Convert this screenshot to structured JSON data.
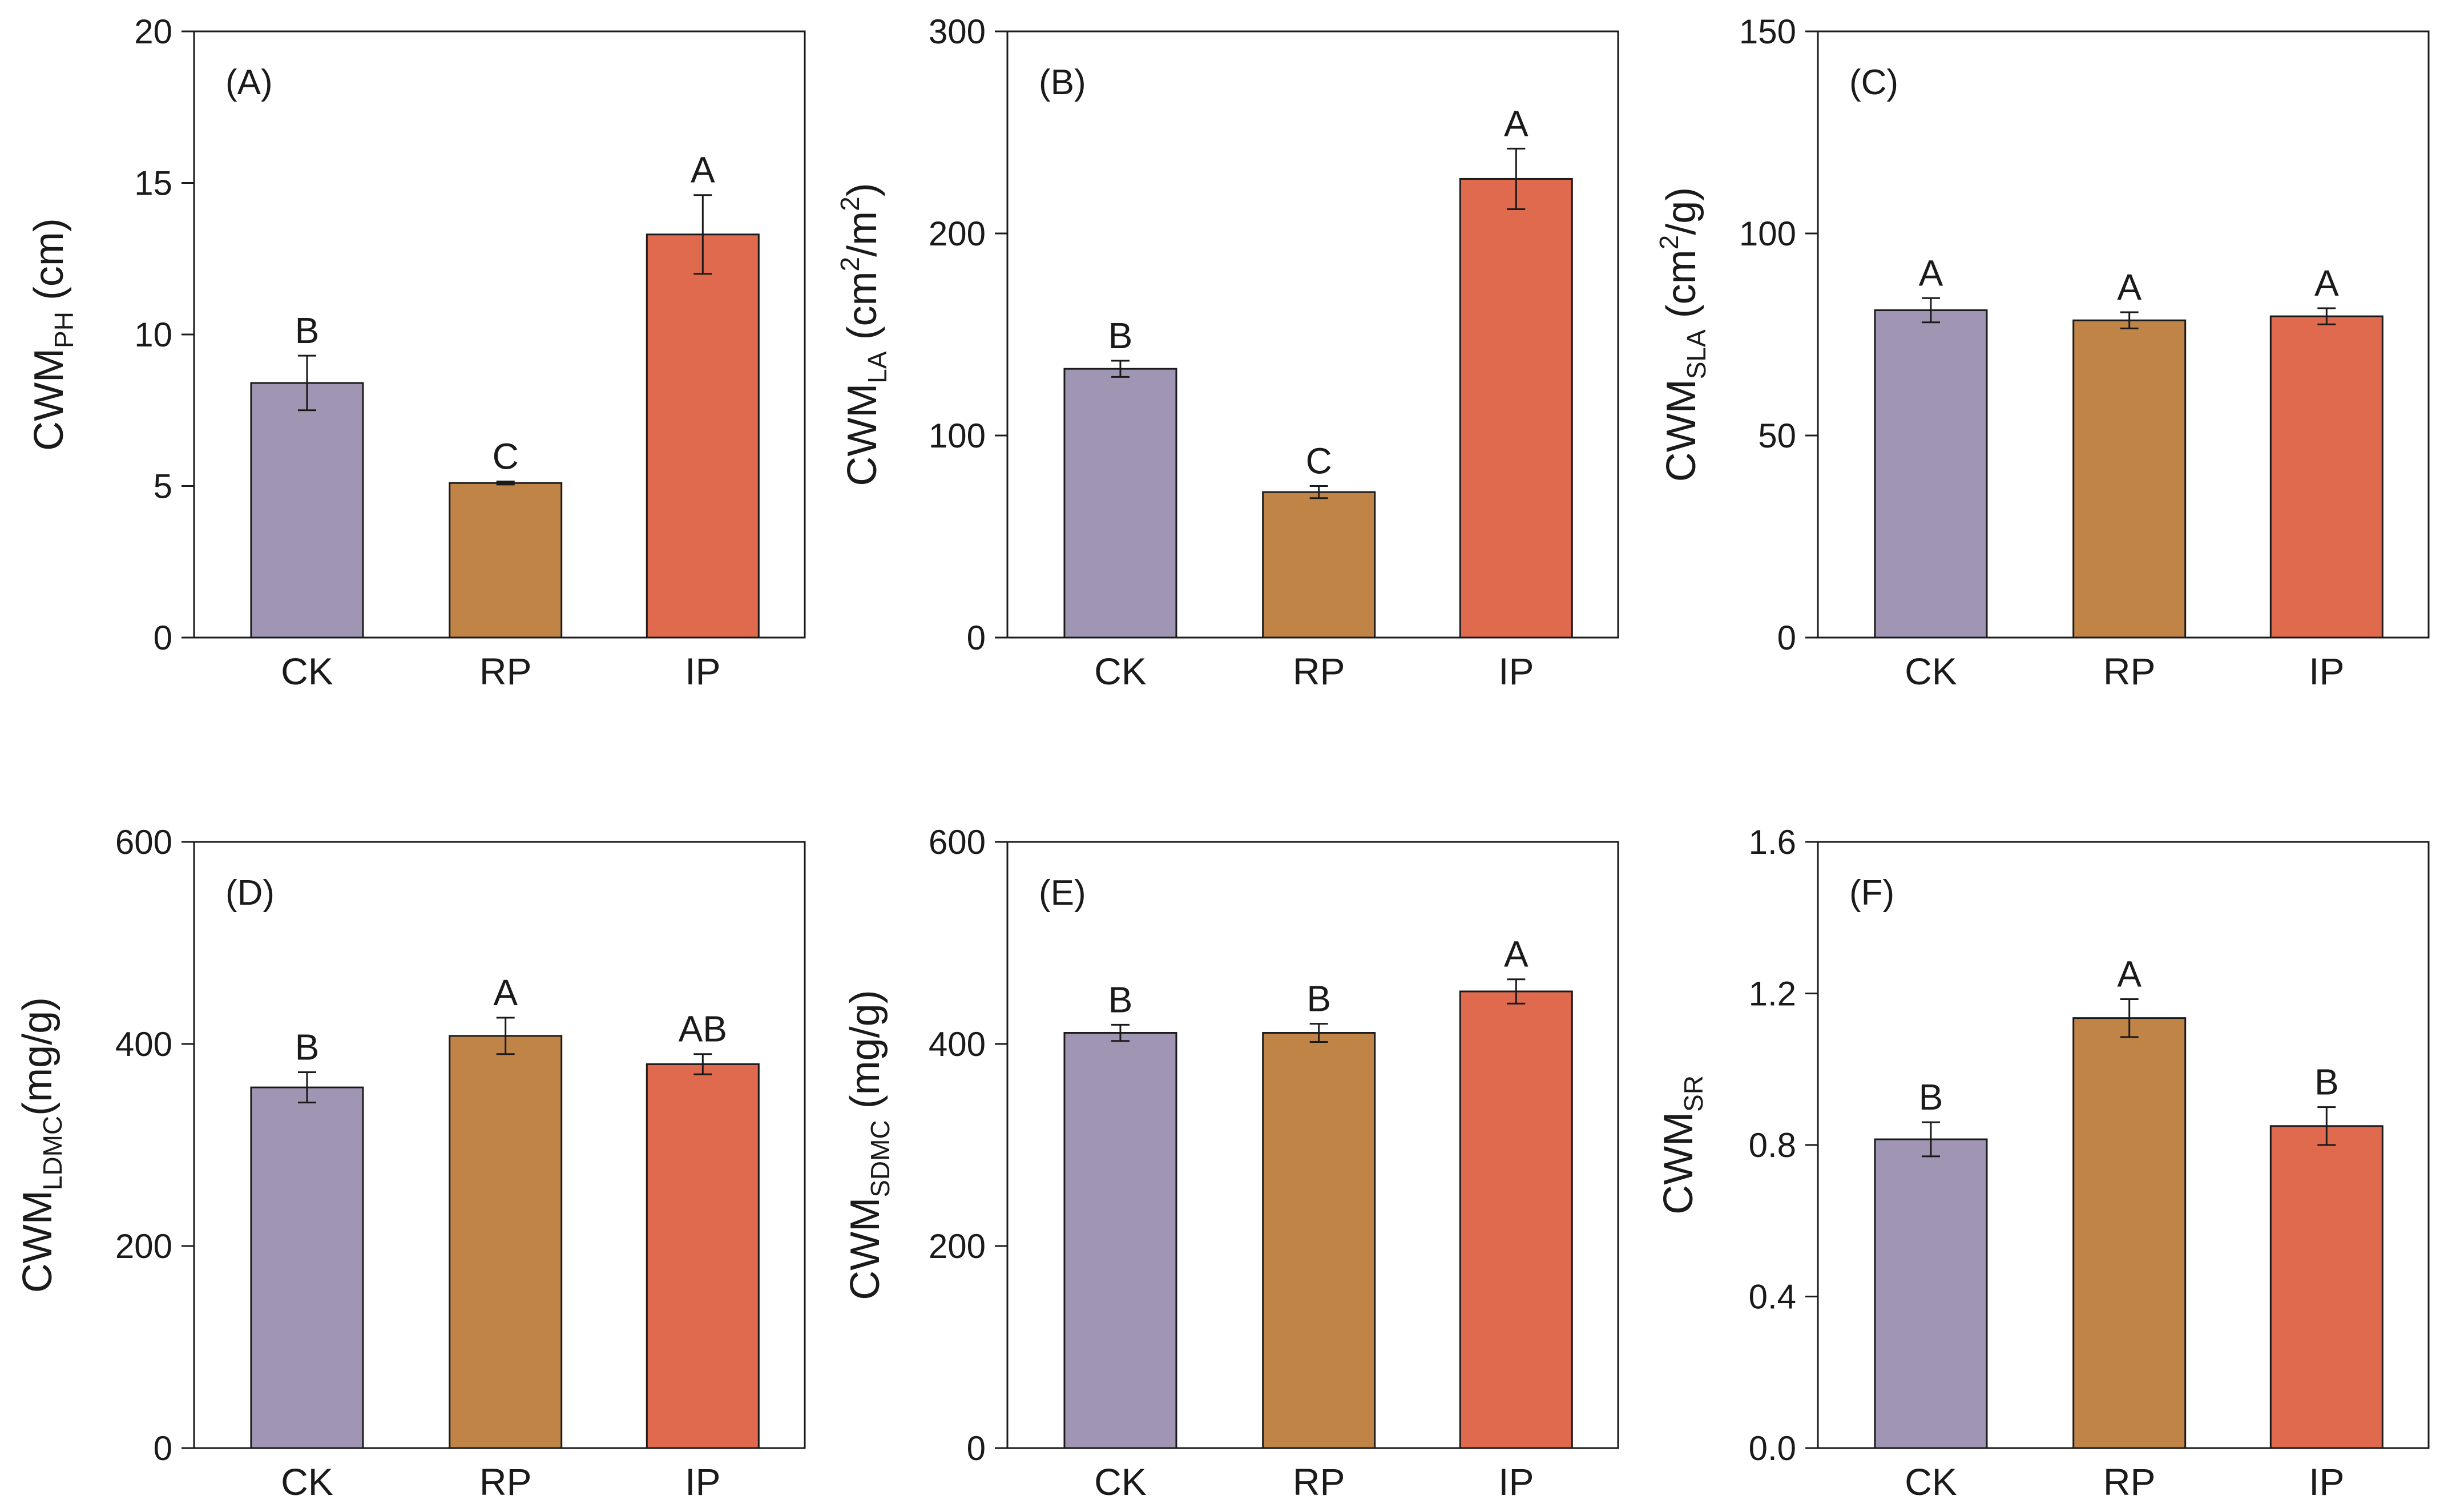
{
  "chart_data": [
    {
      "type": "bar",
      "panel": "(A)",
      "ylabel": {
        "base": "CWM",
        "sub": "PH",
        "suffix": " (cm)"
      },
      "ylim": [
        0,
        20
      ],
      "yticks": [
        0,
        5,
        10,
        15,
        20
      ],
      "ytick_labels": [
        "0",
        "5",
        "10",
        "15",
        "20"
      ],
      "categories": [
        "CK",
        "RP",
        "IP"
      ],
      "values": [
        8.4,
        5.1,
        13.3
      ],
      "errors": [
        0.9,
        0.05,
        1.3
      ],
      "letters": [
        "B",
        "C",
        "A"
      ],
      "colors": [
        "#a195b4",
        "#c08447",
        "#e06a4e"
      ]
    },
    {
      "type": "bar",
      "panel": "(B)",
      "ylabel": {
        "base": "CWM",
        "sub": "LA",
        "suffix": " (cm",
        "sup1": "2",
        "mid": "/m",
        "sup2": "2",
        "end": ")"
      },
      "ylim": [
        0,
        300
      ],
      "yticks": [
        0,
        100,
        200,
        300
      ],
      "ytick_labels": [
        "0",
        "100",
        "200",
        "300"
      ],
      "categories": [
        "CK",
        "RP",
        "IP"
      ],
      "values": [
        133,
        72,
        227
      ],
      "errors": [
        4,
        3,
        15
      ],
      "letters": [
        "B",
        "C",
        "A"
      ],
      "colors": [
        "#a195b4",
        "#c08447",
        "#e06a4e"
      ]
    },
    {
      "type": "bar",
      "panel": "(C)",
      "ylabel": {
        "base": "CWM",
        "sub": "SLA",
        "suffix": " (cm",
        "sup1": "2",
        "mid": "/g)"
      },
      "ylim": [
        0,
        150
      ],
      "yticks": [
        0,
        50,
        100,
        150
      ],
      "ytick_labels": [
        "0",
        "50",
        "100",
        "150"
      ],
      "categories": [
        "CK",
        "RP",
        "IP"
      ],
      "values": [
        81,
        78.5,
        79.5
      ],
      "errors": [
        3,
        2,
        2
      ],
      "letters": [
        "A",
        "A",
        "A"
      ],
      "colors": [
        "#a195b4",
        "#c08447",
        "#e06a4e"
      ]
    },
    {
      "type": "bar",
      "panel": "(D)",
      "ylabel": {
        "base": "CWM",
        "sub": "LDMC",
        "suffix": "(mg/g)"
      },
      "ylim": [
        0,
        600
      ],
      "yticks": [
        0,
        200,
        400,
        600
      ],
      "ytick_labels": [
        "0",
        "200",
        "400",
        "600"
      ],
      "categories": [
        "CK",
        "RP",
        "IP"
      ],
      "values": [
        357,
        408,
        380
      ],
      "errors": [
        15,
        18,
        10
      ],
      "letters": [
        "B",
        "A",
        "AB"
      ],
      "colors": [
        "#a195b4",
        "#c08447",
        "#e06a4e"
      ]
    },
    {
      "type": "bar",
      "panel": "(E)",
      "ylabel": {
        "base": "CWM",
        "sub": "SDMC",
        "suffix": " (mg/g)"
      },
      "ylim": [
        0,
        600
      ],
      "yticks": [
        0,
        200,
        400,
        600
      ],
      "ytick_labels": [
        "0",
        "200",
        "400",
        "600"
      ],
      "categories": [
        "CK",
        "RP",
        "IP"
      ],
      "values": [
        411,
        411,
        452
      ],
      "errors": [
        8,
        9,
        12
      ],
      "letters": [
        "B",
        "B",
        "A"
      ],
      "colors": [
        "#a195b4",
        "#c08447",
        "#e06a4e"
      ]
    },
    {
      "type": "bar",
      "panel": "(F)",
      "ylabel": {
        "base": "CWM",
        "sub": "SR",
        "suffix": ""
      },
      "ylim": [
        0,
        1.6
      ],
      "yticks": [
        0,
        0.4,
        0.8,
        1.2,
        1.6
      ],
      "ytick_labels": [
        "0.0",
        "0.4",
        "0.8",
        "1.2",
        "1.6"
      ],
      "categories": [
        "CK",
        "RP",
        "IP"
      ],
      "values": [
        0.815,
        1.135,
        0.85
      ],
      "errors": [
        0.045,
        0.05,
        0.05
      ],
      "letters": [
        "B",
        "A",
        "B"
      ],
      "colors": [
        "#a195b4",
        "#c08447",
        "#e06a4e"
      ]
    }
  ]
}
